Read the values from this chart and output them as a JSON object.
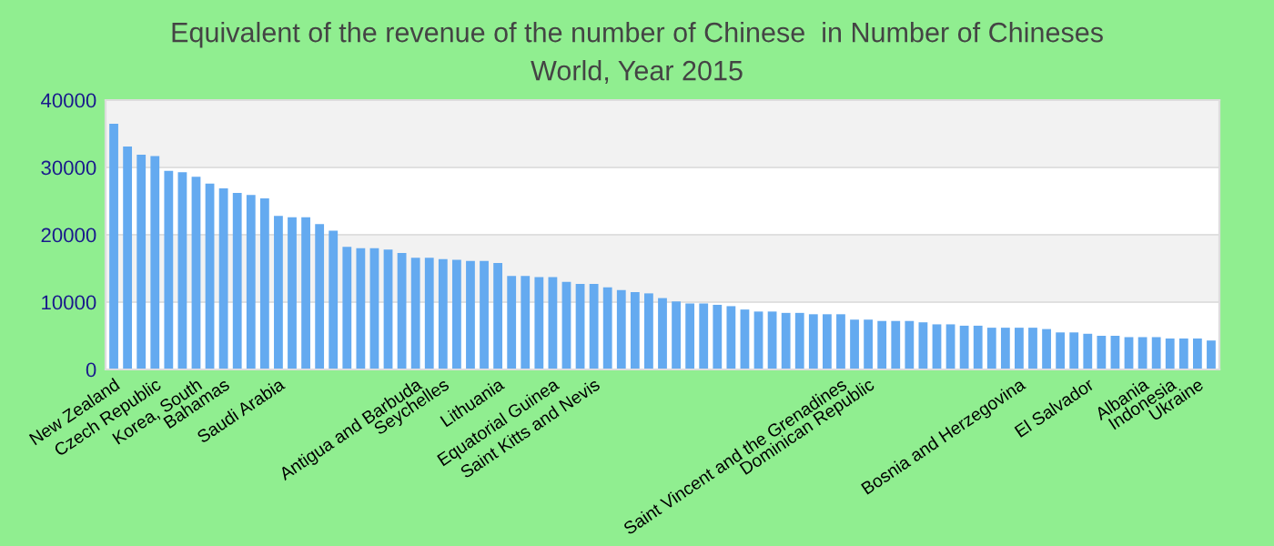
{
  "chart_data": {
    "type": "bar",
    "title": "Equivalent of the revenue of the number of Chinese  in Number of Chineses",
    "subtitle": "World, Year 2015",
    "categories": [
      "New Zealand",
      null,
      null,
      "Czech Republic",
      null,
      null,
      "Korea, South",
      null,
      "Bahamas",
      null,
      null,
      null,
      "Saudi Arabia",
      null,
      null,
      null,
      null,
      null,
      null,
      null,
      null,
      null,
      "Antigua and Barbuda",
      null,
      "Seychelles",
      null,
      null,
      null,
      "Lithuania",
      null,
      null,
      null,
      "Equatorial Guinea",
      null,
      null,
      "Saint Kitts and Nevis",
      null,
      null,
      null,
      null,
      null,
      null,
      null,
      null,
      null,
      null,
      null,
      null,
      null,
      null,
      null,
      null,
      null,
      "Saint Vincent and the Grenadines",
      null,
      "Dominican Republic",
      null,
      null,
      null,
      null,
      null,
      null,
      null,
      null,
      null,
      null,
      "Bosnia and Herzegovina",
      null,
      null,
      null,
      null,
      "El Salvador",
      null,
      null,
      null,
      "Albania",
      null,
      "Indonesia",
      null,
      "Ukraine",
      null
    ],
    "values": [
      36500,
      33100,
      31900,
      31700,
      29500,
      29300,
      28600,
      27600,
      26900,
      26200,
      25900,
      25400,
      22800,
      22600,
      22600,
      21600,
      20600,
      18200,
      18000,
      18000,
      17800,
      17300,
      16600,
      16600,
      16400,
      16300,
      16100,
      16100,
      15800,
      13900,
      13900,
      13700,
      13700,
      13000,
      12700,
      12700,
      12200,
      11800,
      11500,
      11300,
      10600,
      10100,
      9800,
      9800,
      9600,
      9400,
      8900,
      8600,
      8600,
      8400,
      8400,
      8200,
      8200,
      8200,
      7400,
      7400,
      7200,
      7200,
      7200,
      7000,
      6700,
      6700,
      6500,
      6500,
      6200,
      6200,
      6200,
      6200,
      6000,
      5500,
      5500,
      5300,
      5000,
      5000,
      4800,
      4800,
      4800,
      4600,
      4600,
      4600,
      4300
    ],
    "color": "#64aaf0",
    "ylim": [
      0,
      40000
    ],
    "yticks": [
      0,
      10000,
      20000,
      30000,
      40000
    ],
    "grid": "y"
  }
}
